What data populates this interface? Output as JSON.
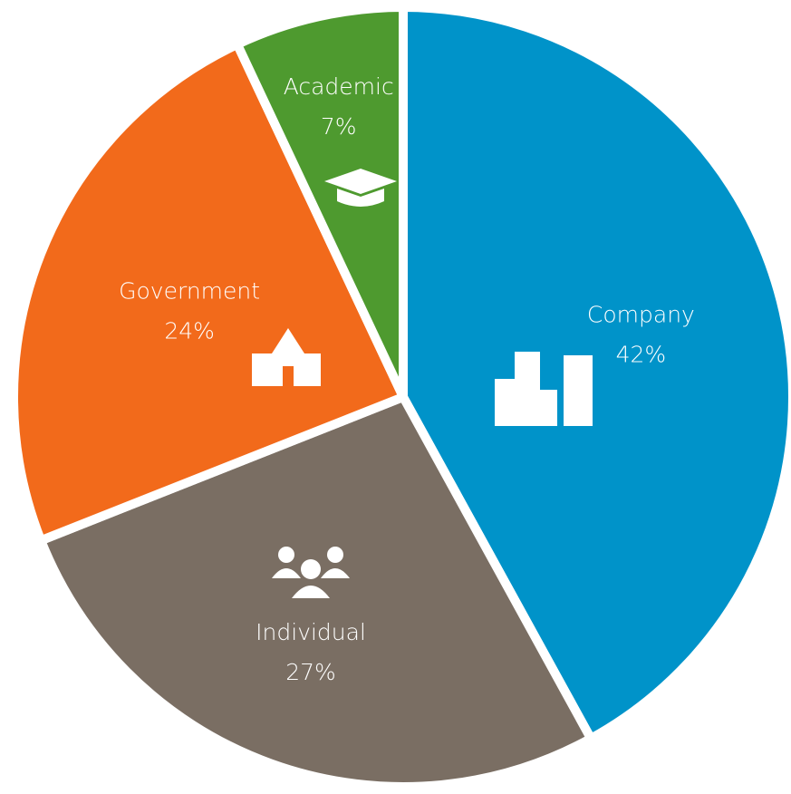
{
  "chart_data": {
    "type": "pie",
    "categories": [
      "Company",
      "Individual",
      "Government",
      "Academic"
    ],
    "values": [
      42,
      27,
      24,
      7
    ],
    "value_labels": [
      "42%",
      "27%",
      "24%",
      "7%"
    ],
    "colors": [
      "#0093c9",
      "#7a6e63",
      "#f26a1b",
      "#4e9a2f"
    ]
  }
}
